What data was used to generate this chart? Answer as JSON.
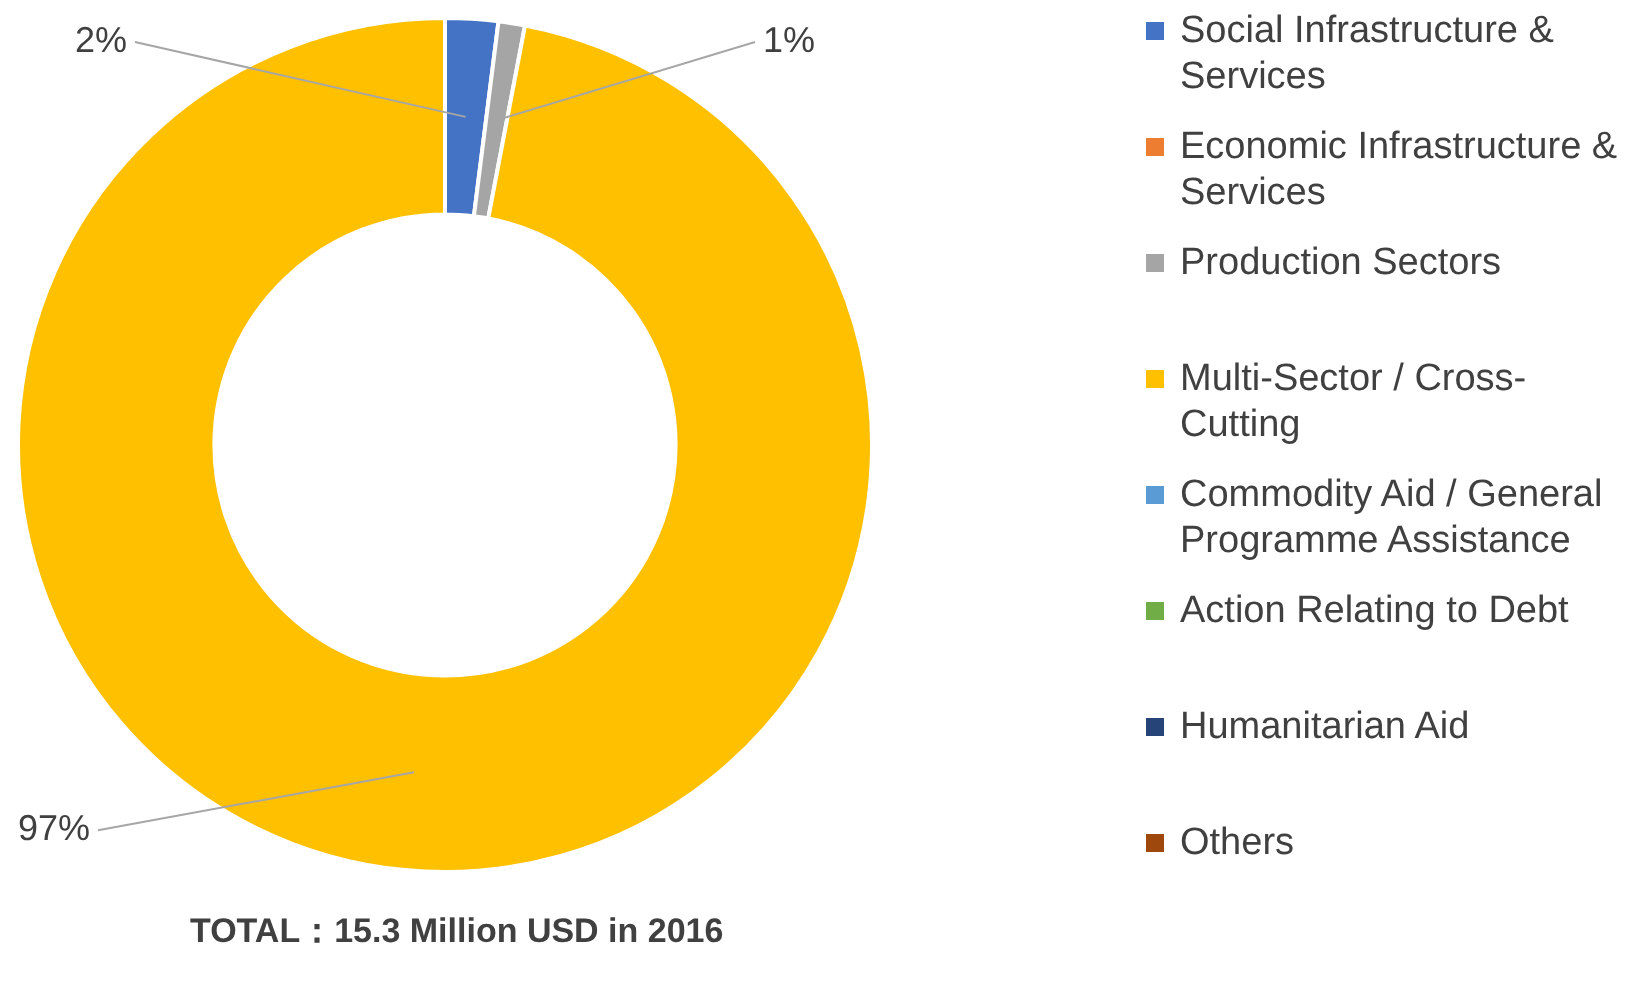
{
  "chart_data": {
    "type": "donut",
    "categories": [
      "Social Infrastructure & Services",
      "Economic Infrastructure & Services",
      "Production Sectors",
      "Multi-Sector / Cross-Cutting",
      "Commodity Aid / General Programme Assistance",
      "Action Relating to Debt",
      "Humanitarian Aid",
      "Others"
    ],
    "values": [
      2,
      0,
      1,
      97,
      0,
      0,
      0,
      0
    ],
    "colors": [
      "#4472c4",
      "#ed7d31",
      "#a5a5a5",
      "#ffc000",
      "#5b9bd5",
      "#70ad47",
      "#264478",
      "#9e480e"
    ],
    "value_labels": [
      "2%",
      null,
      "1%",
      "97%",
      null,
      null,
      null,
      null
    ],
    "legend": "right",
    "annotations": [
      "TOTAL：15.3 Million USD in 2016"
    ]
  }
}
